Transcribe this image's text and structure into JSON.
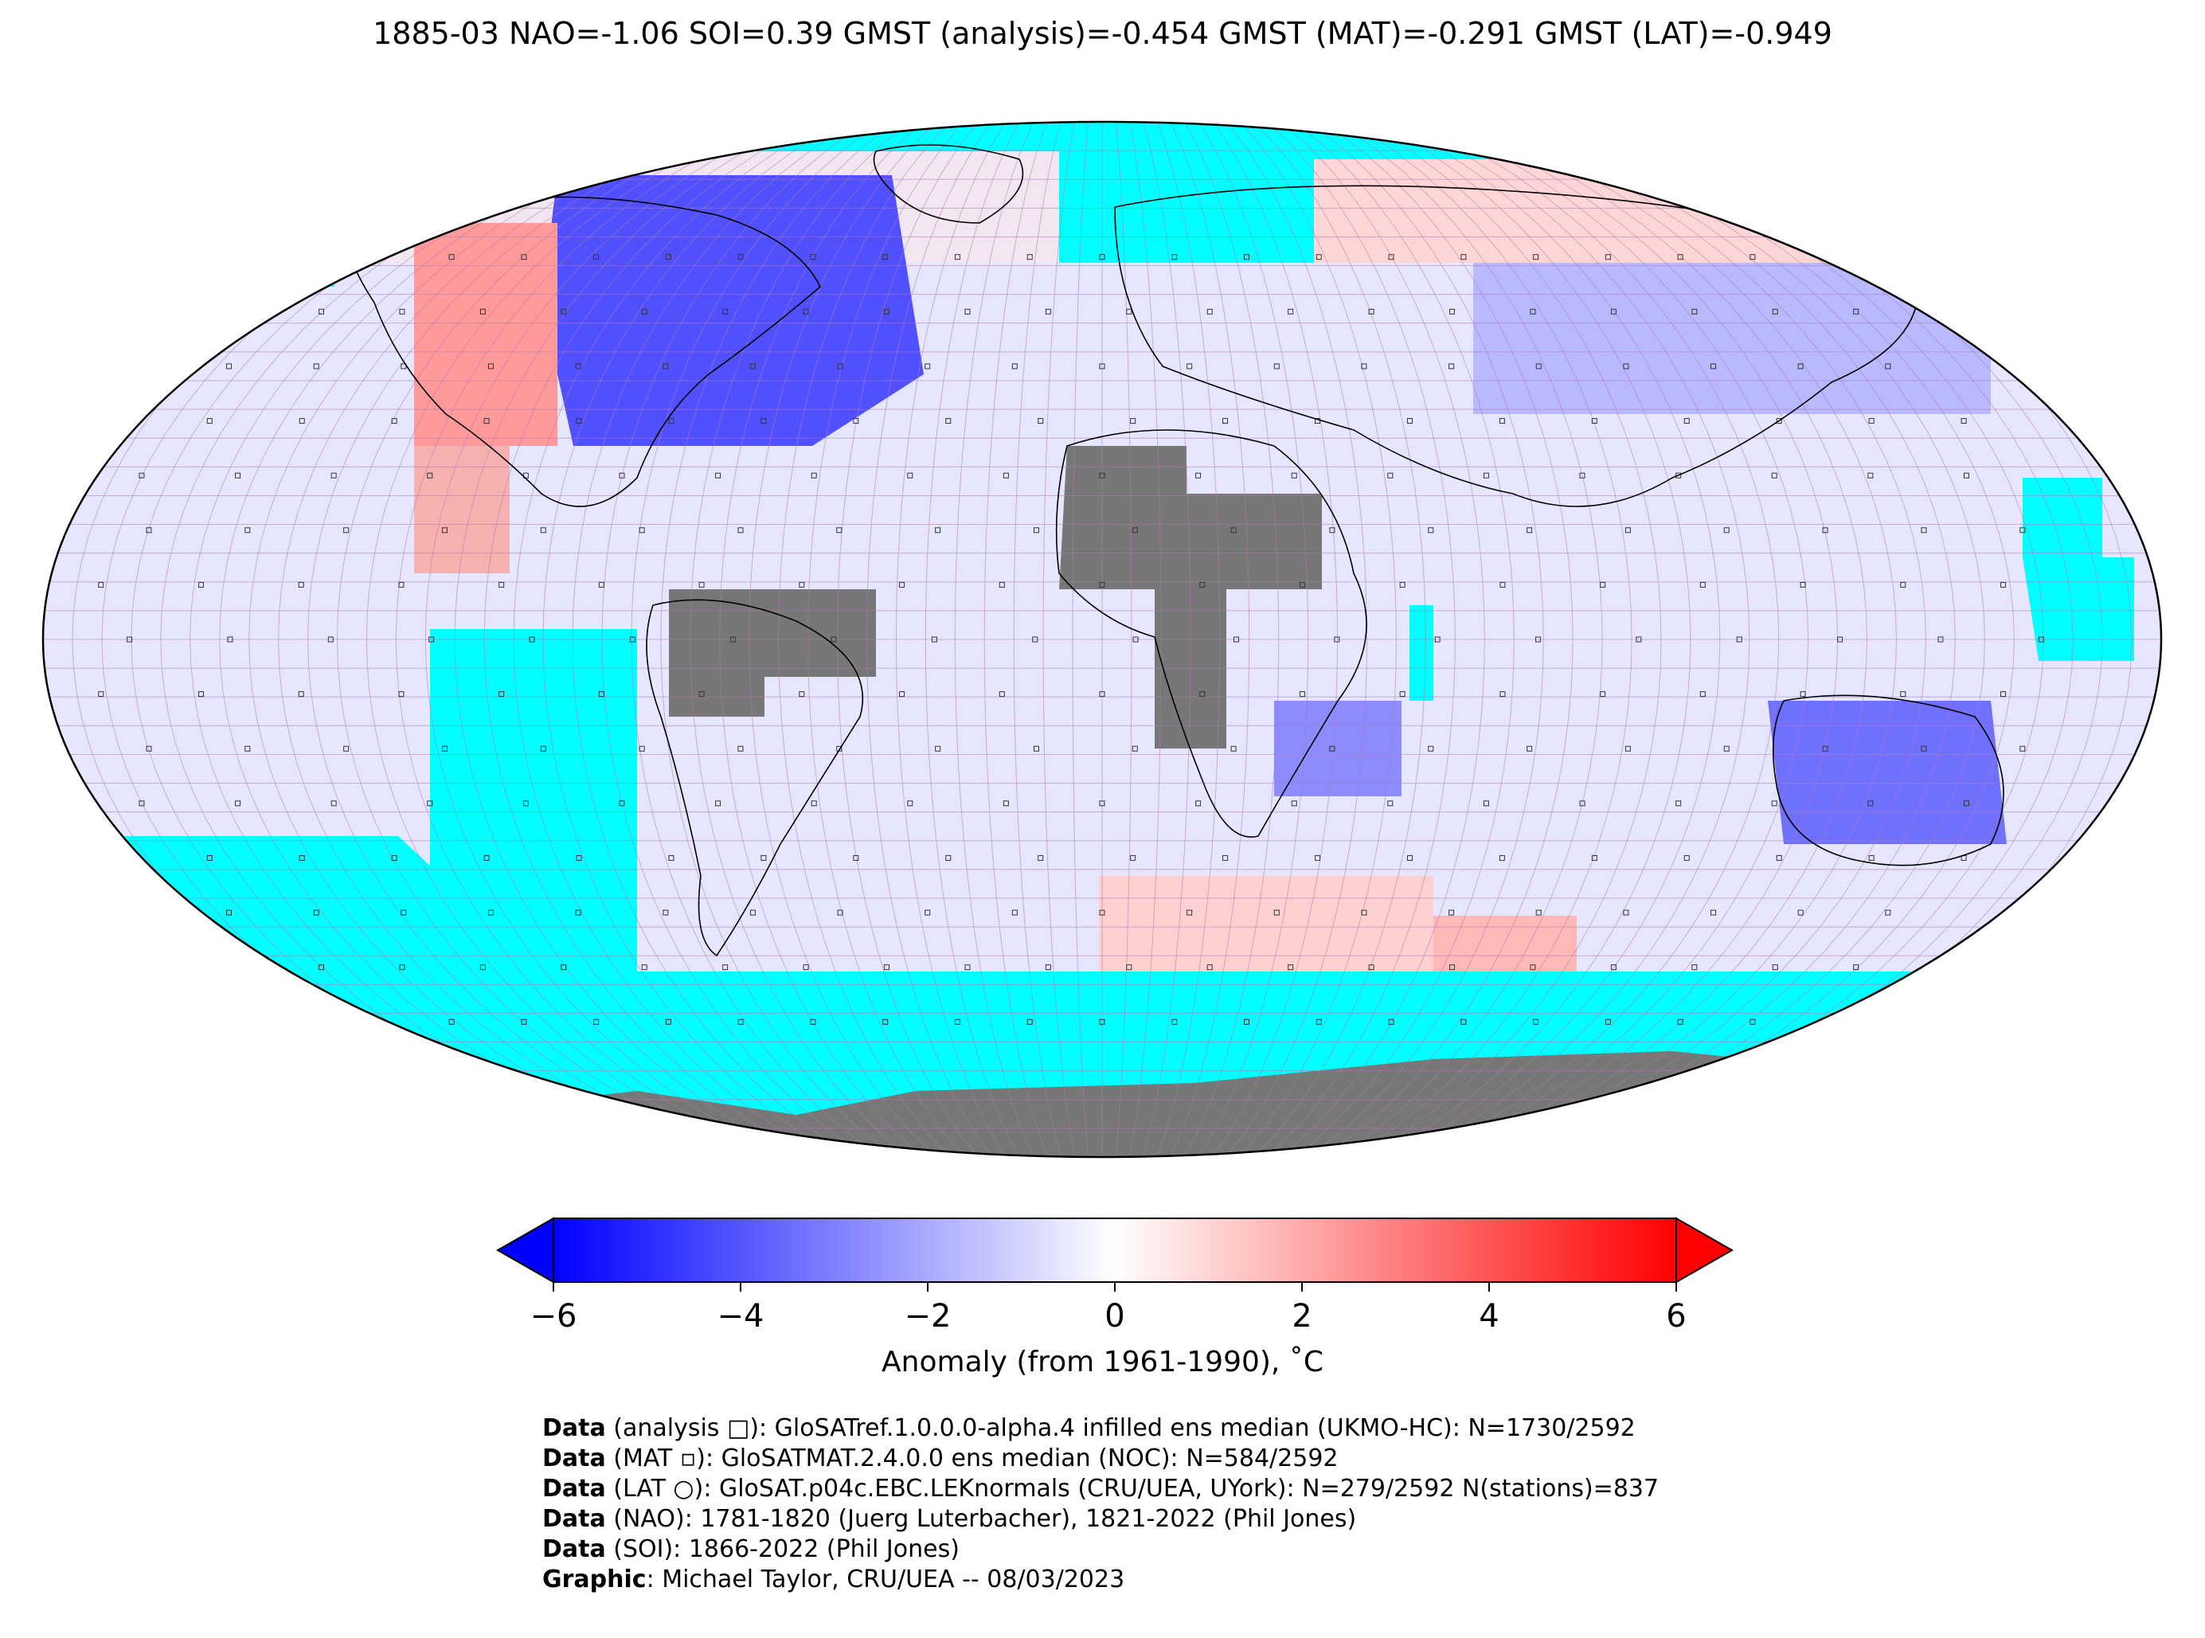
{
  "title": "1885-03 NAO=-1.06 SOI=0.39 GMST (analysis)=-0.454 GMST (MAT)=-0.291 GMST (LAT)=-0.949",
  "colorbar": {
    "label": "Anomaly (from 1961-1990), ˚C",
    "min": -6,
    "max": 6,
    "ticks": [
      "−6",
      "−4",
      "−2",
      "0",
      "2",
      "4",
      "6"
    ],
    "colors": {
      "low": "#0000ff",
      "mid": "#ffffff",
      "high": "#ff0000"
    },
    "extend": "both"
  },
  "map": {
    "projection": "Robinson",
    "grid_resolution_deg": 5,
    "missing_color": "#00ffff",
    "land_mask_color": "#777777",
    "layers": [
      "analysis infilled grid",
      "MAT squares",
      "LAT station circles",
      "coastlines",
      "country borders"
    ]
  },
  "credits": [
    {
      "bold": "Data",
      "text": " (analysis □): GloSATref.1.0.0.0-alpha.4 infilled ens median (UKMO-HC): N=1730/2592"
    },
    {
      "bold": "Data",
      "text": " (MAT ▫): GloSATMAT.2.4.0.0 ens median (NOC): N=584/2592"
    },
    {
      "bold": "Data",
      "text": " (LAT ○): GloSAT.p04c.EBC.LEKnormals (CRU/UEA, UYork): N=279/2592 N(stations)=837"
    },
    {
      "bold": "Data",
      "text": " (NAO): 1781-1820 (Juerg Luterbacher), 1821-2022 (Phil Jones)"
    },
    {
      "bold": "Data",
      "text": " (SOI): 1866-2022 (Phil Jones)"
    },
    {
      "bold": "Graphic",
      "text": ": Michael Taylor, CRU/UEA -- 08/03/2023"
    }
  ]
}
